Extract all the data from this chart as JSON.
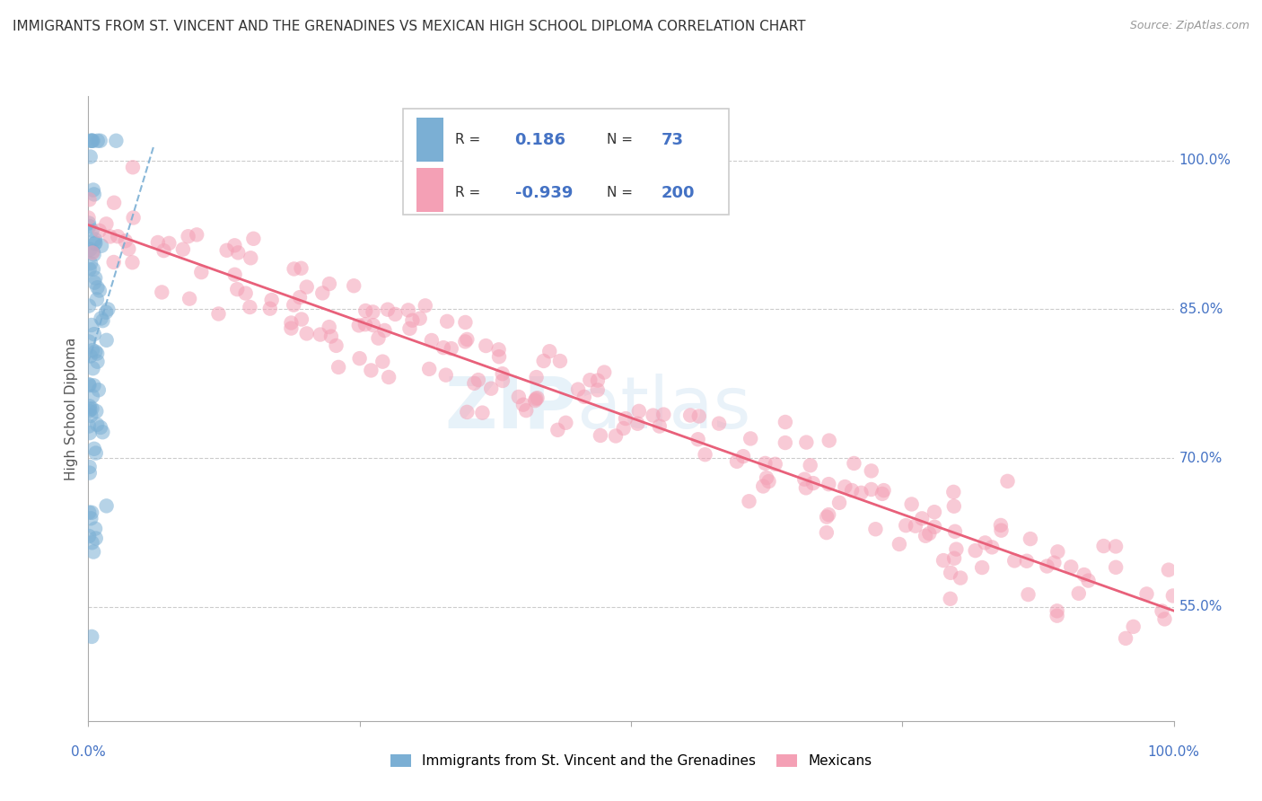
{
  "title": "IMMIGRANTS FROM ST. VINCENT AND THE GRENADINES VS MEXICAN HIGH SCHOOL DIPLOMA CORRELATION CHART",
  "source": "Source: ZipAtlas.com",
  "ylabel": "High School Diploma",
  "ytick_labels": [
    "100.0%",
    "85.0%",
    "70.0%",
    "55.0%"
  ],
  "ytick_values": [
    1.0,
    0.85,
    0.7,
    0.55
  ],
  "xlim": [
    0.0,
    1.0
  ],
  "ylim": [
    0.435,
    1.065
  ],
  "blue_R": 0.186,
  "blue_N": 73,
  "pink_R": -0.939,
  "pink_N": 200,
  "legend_label_blue": "Immigrants from St. Vincent and the Grenadines",
  "legend_label_pink": "Mexicans",
  "blue_color": "#7bafd4",
  "pink_color": "#f4a0b5",
  "pink_line_color": "#e8607a",
  "watermark_zip": "ZIP",
  "watermark_atlas": "atlas",
  "title_color": "#333333",
  "axis_label_color": "#4472c4",
  "grid_color": "#cccccc"
}
